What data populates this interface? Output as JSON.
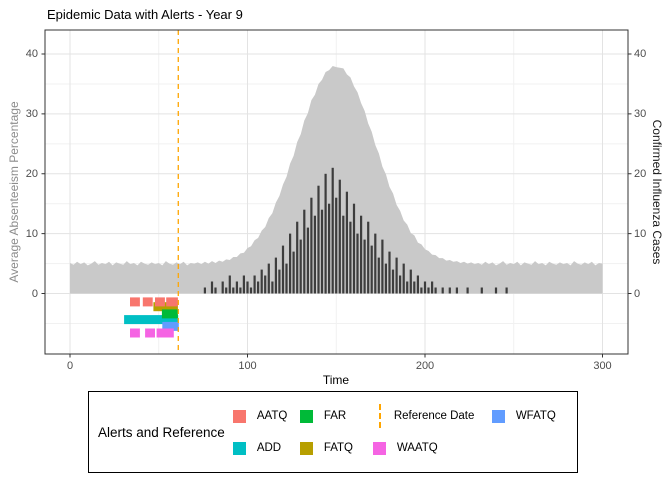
{
  "chart_data": {
    "type": "area+bar",
    "title": "Epidemic Data with Alerts - Year 9",
    "xlabel": "Time",
    "ylabel_left": "Average Absenteeism Percentage",
    "ylabel_right": "Confirmed Influenza Cases",
    "x_ticks": [
      0,
      100,
      200,
      300
    ],
    "x_minor": [
      50,
      150,
      250
    ],
    "y_ticks": [
      0,
      10,
      20,
      30,
      40
    ],
    "y_minor": [
      -5,
      5,
      15,
      25,
      35
    ],
    "xlim": [
      -14,
      314
    ],
    "ylim": [
      -10.3,
      44
    ],
    "x_start": 0,
    "x_step": 2,
    "grid": true,
    "legend_position": "bottom",
    "series": [
      {
        "name": "Average Absenteeism Percentage",
        "type": "area",
        "color": "#C9C9C9",
        "values": [
          5.1,
          4.8,
          5.3,
          4.9,
          5.2,
          4.7,
          5.0,
          5.4,
          4.8,
          5.1,
          4.9,
          5.3,
          4.7,
          5.2,
          5.0,
          4.8,
          5.4,
          4.9,
          5.1,
          4.7,
          5.3,
          5.0,
          4.8,
          5.2,
          4.9,
          5.1,
          4.7,
          5.4,
          5.0,
          4.8,
          5.2,
          4.9,
          5.3,
          4.7,
          5.1,
          5.0,
          5.2,
          4.9,
          5.3,
          5.0,
          5.4,
          5.1,
          5.5,
          5.3,
          5.7,
          5.6,
          6.1,
          6.1,
          6.7,
          6.8,
          7.6,
          7.9,
          8.9,
          9.3,
          10.5,
          11.1,
          12.6,
          13.4,
          15.2,
          16.3,
          18.2,
          19.5,
          21.7,
          23.0,
          25.3,
          26.6,
          28.9,
          30.1,
          32.3,
          33.2,
          35.0,
          35.7,
          37.0,
          37.3,
          38.0,
          37.8,
          37.7,
          37.6,
          36.6,
          36.1,
          34.6,
          33.6,
          31.8,
          30.5,
          28.4,
          27.0,
          24.8,
          23.4,
          21.2,
          19.9,
          17.8,
          16.7,
          14.8,
          13.8,
          12.2,
          11.5,
          10.1,
          9.7,
          8.5,
          8.2,
          7.4,
          7.1,
          6.5,
          6.4,
          5.9,
          5.9,
          5.5,
          5.6,
          5.3,
          5.4,
          5.1,
          5.3,
          5.0,
          5.2,
          4.9,
          5.1,
          4.8,
          5.3,
          4.9,
          5.2,
          4.7,
          5.0,
          5.4,
          4.8,
          5.1,
          4.9,
          5.3,
          4.7,
          5.2,
          5.0,
          4.8,
          5.4,
          4.9,
          5.1,
          4.7,
          5.3,
          5.0,
          4.8,
          5.2,
          4.9,
          5.1,
          4.7,
          5.4,
          5.0,
          4.8,
          5.2,
          4.9,
          5.3,
          4.7,
          5.1,
          5.0
        ]
      },
      {
        "name": "Confirmed Influenza Cases",
        "type": "bar",
        "color": "#3D3D3D",
        "values": [
          0,
          0,
          0,
          0,
          0,
          0,
          0,
          0,
          0,
          0,
          0,
          0,
          0,
          0,
          0,
          0,
          0,
          0,
          0,
          0,
          0,
          0,
          0,
          0,
          0,
          0,
          0,
          0,
          0,
          0,
          0,
          0,
          0,
          0,
          0,
          0,
          0,
          0,
          1,
          0,
          2,
          1,
          0,
          2,
          1,
          3,
          1,
          2,
          1,
          3,
          2,
          1,
          3,
          2,
          4,
          3,
          5,
          2,
          6,
          4,
          8,
          5,
          10,
          7,
          12,
          9,
          14,
          11,
          16,
          13,
          18,
          14,
          20,
          15,
          21,
          16,
          19,
          13,
          17,
          12,
          15,
          10,
          13,
          9,
          12,
          8,
          10,
          6,
          9,
          5,
          7,
          4,
          6,
          3,
          5,
          2,
          4,
          2,
          3,
          1,
          2,
          1,
          2,
          1,
          0,
          1,
          0,
          1,
          0,
          1,
          0,
          0,
          1,
          0,
          0,
          0,
          1,
          0,
          0,
          0,
          1,
          0,
          0,
          1,
          0,
          0,
          0,
          0,
          0,
          0,
          0,
          0,
          0,
          0,
          0,
          0,
          0,
          0,
          0,
          0,
          0,
          0,
          0,
          0,
          0,
          0,
          0,
          0,
          0,
          0,
          0
        ]
      }
    ],
    "reference_date": 61,
    "alerts": [
      {
        "name": "FATQ",
        "color": "#B79F00",
        "y": -2.2,
        "height": 1.5,
        "segments": [
          [
            47.0,
            60.8
          ]
        ]
      },
      {
        "name": "ADD",
        "color": "#00BFC4",
        "y": -4.35,
        "height": 1.5,
        "segments": [
          [
            30.5,
            61.0
          ]
        ]
      },
      {
        "name": "WFATQ",
        "color": "#619CFF",
        "y": -5.5,
        "height": 1.5,
        "segments": [
          [
            52.0,
            61.3
          ]
        ]
      },
      {
        "name": "AATQ",
        "color": "#F8766D",
        "y": -1.4,
        "height": 1.5,
        "segments": [
          [
            33.8,
            39.4
          ],
          [
            41.0,
            46.6
          ],
          [
            47.9,
            53.5
          ],
          [
            54.2,
            60.8
          ]
        ]
      },
      {
        "name": "FAR",
        "color": "#00BA38",
        "y": -3.4,
        "height": 1.5,
        "segments": [
          [
            51.8,
            60.8
          ]
        ]
      },
      {
        "name": "WAATQ",
        "color": "#F564E3",
        "y": -6.6,
        "height": 1.5,
        "segments": [
          [
            33.8,
            39.4
          ],
          [
            42.3,
            47.9
          ],
          [
            48.8,
            58.5
          ]
        ]
      }
    ],
    "colors": {
      "area": "#C9C9C9",
      "bars": "#3D3D3D",
      "reference": "#FFA500",
      "grid_major": "#E3E3E3",
      "grid_minor": "#F1F1F1",
      "panel_border": "#333333",
      "tick_text": "#4D4D4D",
      "left_axis_title": "#8C8C8C",
      "right_axis_title": "#1A1A1A"
    }
  },
  "legend": {
    "title": "Alerts and Reference",
    "items": [
      {
        "label": "AATQ",
        "color": "#F8766D",
        "type": "square"
      },
      {
        "label": "ADD",
        "color": "#00BFC4",
        "type": "square"
      },
      {
        "label": "FAR",
        "color": "#00BA38",
        "type": "square"
      },
      {
        "label": "FATQ",
        "color": "#B79F00",
        "type": "square"
      },
      {
        "label": "Reference Date",
        "color": "#FFA500",
        "type": "dashed-line"
      },
      {
        "label": "WAATQ",
        "color": "#F564E3",
        "type": "square"
      },
      {
        "label": "WFATQ",
        "color": "#619CFF",
        "type": "square"
      }
    ]
  }
}
